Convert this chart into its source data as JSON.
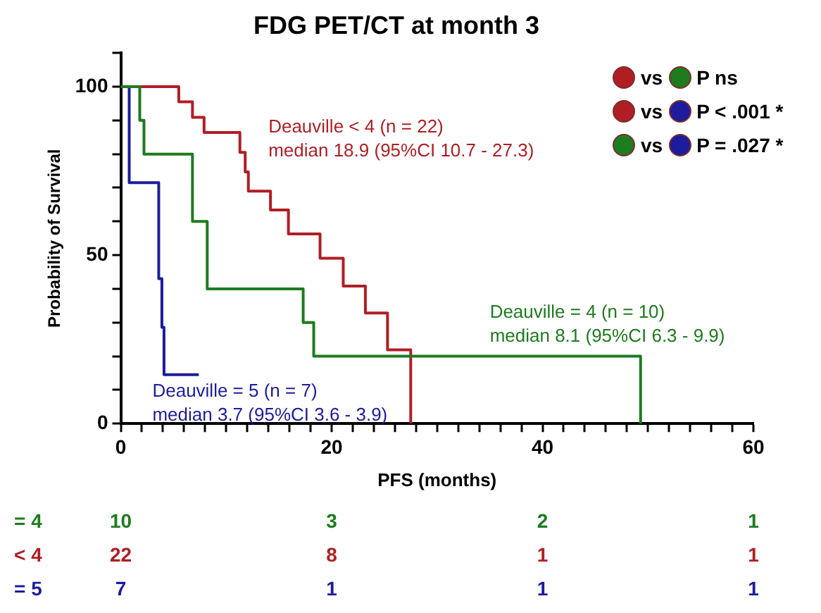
{
  "chart_data": {
    "type": "step",
    "title": "FDG PET/CT at month 3",
    "xlabel": "PFS (months)",
    "ylabel": "Probability of Survival",
    "xlim": [
      0,
      60
    ],
    "ylim": [
      0,
      110
    ],
    "xticks": [
      0,
      {
        "value": 2,
        "label": null
      },
      {
        "value": 4,
        "label": null
      },
      {
        "value": 6,
        "label": null
      },
      {
        "value": 8,
        "label": null
      },
      {
        "value": 10,
        "label": null
      },
      {
        "value": 12,
        "label": null
      },
      {
        "value": 14,
        "label": null
      },
      {
        "value": 16,
        "label": null
      },
      {
        "value": 18,
        "label": null
      },
      20,
      {
        "value": 22,
        "label": null
      },
      {
        "value": 24,
        "label": null
      },
      {
        "value": 26,
        "label": null
      },
      {
        "value": 28,
        "label": null
      },
      {
        "value": 30,
        "label": null
      },
      {
        "value": 32,
        "label": null
      },
      {
        "value": 34,
        "label": null
      },
      {
        "value": 36,
        "label": null
      },
      {
        "value": 38,
        "label": null
      },
      40,
      {
        "value": 42,
        "label": null
      },
      {
        "value": 44,
        "label": null
      },
      {
        "value": 46,
        "label": null
      },
      {
        "value": 48,
        "label": null
      },
      {
        "value": 50,
        "label": null
      },
      {
        "value": 52,
        "label": null
      },
      {
        "value": 54,
        "label": null
      },
      {
        "value": 56,
        "label": null
      },
      {
        "value": 58,
        "label": null
      },
      60
    ],
    "yticks": [
      0,
      {
        "value": 10,
        "label": null
      },
      {
        "value": 20,
        "label": null
      },
      {
        "value": 30,
        "label": null
      },
      {
        "value": 40,
        "label": null
      },
      50,
      {
        "value": 60,
        "label": null
      },
      {
        "value": 70,
        "label": null
      },
      {
        "value": 80,
        "label": null
      },
      {
        "value": 90,
        "label": null
      },
      100,
      {
        "value": 110,
        "label": null
      }
    ],
    "grid": false,
    "legend": false,
    "marker": "none",
    "line_style": "solid",
    "series": [
      {
        "name": "Deauville = 4 (n = 10)",
        "color": "#1e7b1e",
        "x": [
          0,
          1.8,
          2.2,
          6.8,
          8.2,
          17.3,
          18.3,
          49.3
        ],
        "values": [
          100,
          90,
          80,
          60,
          40,
          30,
          20,
          0
        ]
      },
      {
        "name": "Deauville < 4 (n = 22)",
        "color": "#b01e24",
        "x": [
          0,
          5.5,
          6.8,
          7.9,
          11.3,
          11.8,
          12.1,
          14.2,
          15.9,
          18.9,
          21.1,
          23.2,
          25.3,
          27.5
        ],
        "values": [
          100,
          95.5,
          90.9,
          86.4,
          80.5,
          74.7,
          69,
          63.4,
          56.3,
          49.1,
          40.8,
          32.8,
          21.9,
          0
        ]
      },
      {
        "name": "Deauville = 5 (n = 7)",
        "color": "#1c1c9c",
        "x": [
          0,
          0.8,
          3.6,
          3.9,
          4.1,
          7.4
        ],
        "values": [
          100,
          71.5,
          43,
          28.6,
          14.5,
          14.5
        ]
      }
    ],
    "annotations": [
      "median 8.1 (95%CI 6.3 - 9.9)",
      "median 18.9 (95%CI 10.7 - 27.3)",
      "median 3.7 (95%CI 3.6 - 3.9)",
      "vs",
      "P ns",
      "vs",
      "P < .001 *",
      "vs",
      "P = .027 *",
      "= 4",
      "10",
      "3",
      "2",
      "1",
      "< 4",
      "22",
      "8",
      "1",
      "1",
      "= 5",
      "7",
      "1",
      "1",
      "1"
    ]
  }
}
